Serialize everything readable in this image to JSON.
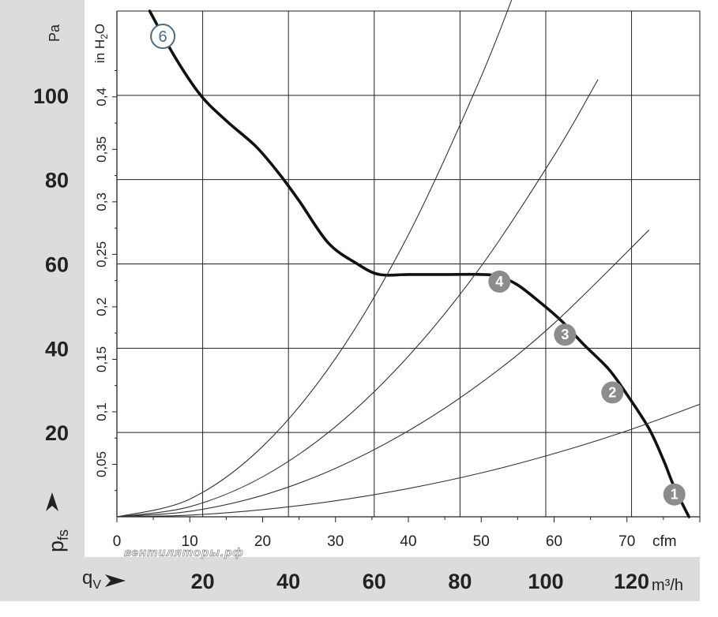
{
  "chart_data": {
    "type": "line",
    "x_axis_primary": {
      "unit": "cfm",
      "ticks": [
        0,
        10,
        20,
        30,
        40,
        50,
        60,
        70
      ],
      "range": [
        0,
        80
      ]
    },
    "x_axis_secondary": {
      "label": "qV",
      "unit": "m³/h",
      "ticks": [
        20,
        40,
        60,
        80,
        100,
        120
      ]
    },
    "y_axis_primary": {
      "label": "pfs",
      "unit": "Pa",
      "ticks": [
        20,
        40,
        60,
        80,
        100
      ],
      "range": [
        0,
        120
      ]
    },
    "y_axis_secondary": {
      "unit": "in H2O",
      "ticks": [
        "0,05",
        "0,1",
        "0,15",
        "0,2",
        "0,25",
        "0,3",
        "0,35",
        "0,4"
      ],
      "tick_values": [
        0.05,
        0.1,
        0.15,
        0.2,
        0.25,
        0.3,
        0.35,
        0.4
      ]
    },
    "grid": true,
    "series": [
      {
        "name": "6",
        "role": "fan curve",
        "x_cfm": [
          4.5,
          8,
          11.5,
          15,
          19,
          22,
          25,
          29,
          33,
          36,
          40,
          45,
          50,
          52.5,
          55,
          58,
          61,
          64,
          67.5,
          70,
          73,
          75,
          76.5,
          78.5
        ],
        "y_pa": [
          120,
          109,
          100,
          94,
          88,
          82,
          75,
          65,
          60,
          57.5,
          57.5,
          57.5,
          57.5,
          57,
          55,
          51,
          46.5,
          41,
          35,
          29,
          21,
          13.5,
          7,
          0
        ]
      },
      {
        "name": "1",
        "role": "system resistance curve",
        "x_cfm": [
          0,
          10,
          20,
          30,
          40,
          50,
          60,
          70,
          80
        ],
        "y_pa": [
          0,
          0.4,
          1.7,
          3.8,
          6.7,
          10.4,
          15.0,
          20.4,
          26.7
        ]
      },
      {
        "name": "2",
        "role": "system resistance curve",
        "x_cfm": [
          0,
          10,
          20,
          30,
          40,
          50,
          60,
          73
        ],
        "y_pa": [
          0,
          1.3,
          5.1,
          11.5,
          20.4,
          31.8,
          45.9,
          68.0
        ]
      },
      {
        "name": "3",
        "role": "system resistance curve",
        "x_cfm": [
          0,
          10,
          20,
          30,
          40,
          50,
          60,
          66
        ],
        "y_pa": [
          0,
          2.4,
          9.5,
          21.4,
          38.1,
          59.5,
          85.7,
          103.7
        ]
      },
      {
        "name": "4",
        "role": "system resistance curve",
        "x_cfm": [
          0,
          10,
          20,
          30,
          40,
          50,
          56
        ],
        "y_pa": [
          0,
          4.2,
          16.7,
          37.6,
          66.9,
          104.5,
          131.1
        ]
      }
    ],
    "markers": [
      {
        "label": "6",
        "x_cfm": 6.3,
        "y_pa": 114,
        "style": "outline"
      },
      {
        "label": "4",
        "x_cfm": 52.5,
        "y_pa": 55.8,
        "style": "filled"
      },
      {
        "label": "3",
        "x_cfm": 61.5,
        "y_pa": 43.2,
        "style": "filled"
      },
      {
        "label": "2",
        "x_cfm": 68.0,
        "y_pa": 29.5,
        "style": "filled"
      },
      {
        "label": "1",
        "x_cfm": 76.5,
        "y_pa": 5.3,
        "style": "filled"
      }
    ]
  },
  "labels": {
    "y_unit_pa": "Pa",
    "y_unit_inh2o": "in H",
    "y_unit_inh2o_sub": "2",
    "y_unit_inh2o_end": "O",
    "y_symbol": "p",
    "y_symbol_sub": "fs",
    "x_unit_cfm": "cfm",
    "x_unit_m3h": "m³/h",
    "x_symbol": "q",
    "x_symbol_sub": "V"
  },
  "watermark": "вентиляторы.рф",
  "colors": {
    "panel_gray": "#dcdcdc",
    "grid": "#222222",
    "fan_curve": "#111111",
    "marker_fill": "#8c8c8c",
    "marker_outline": "#4a6a8a"
  }
}
